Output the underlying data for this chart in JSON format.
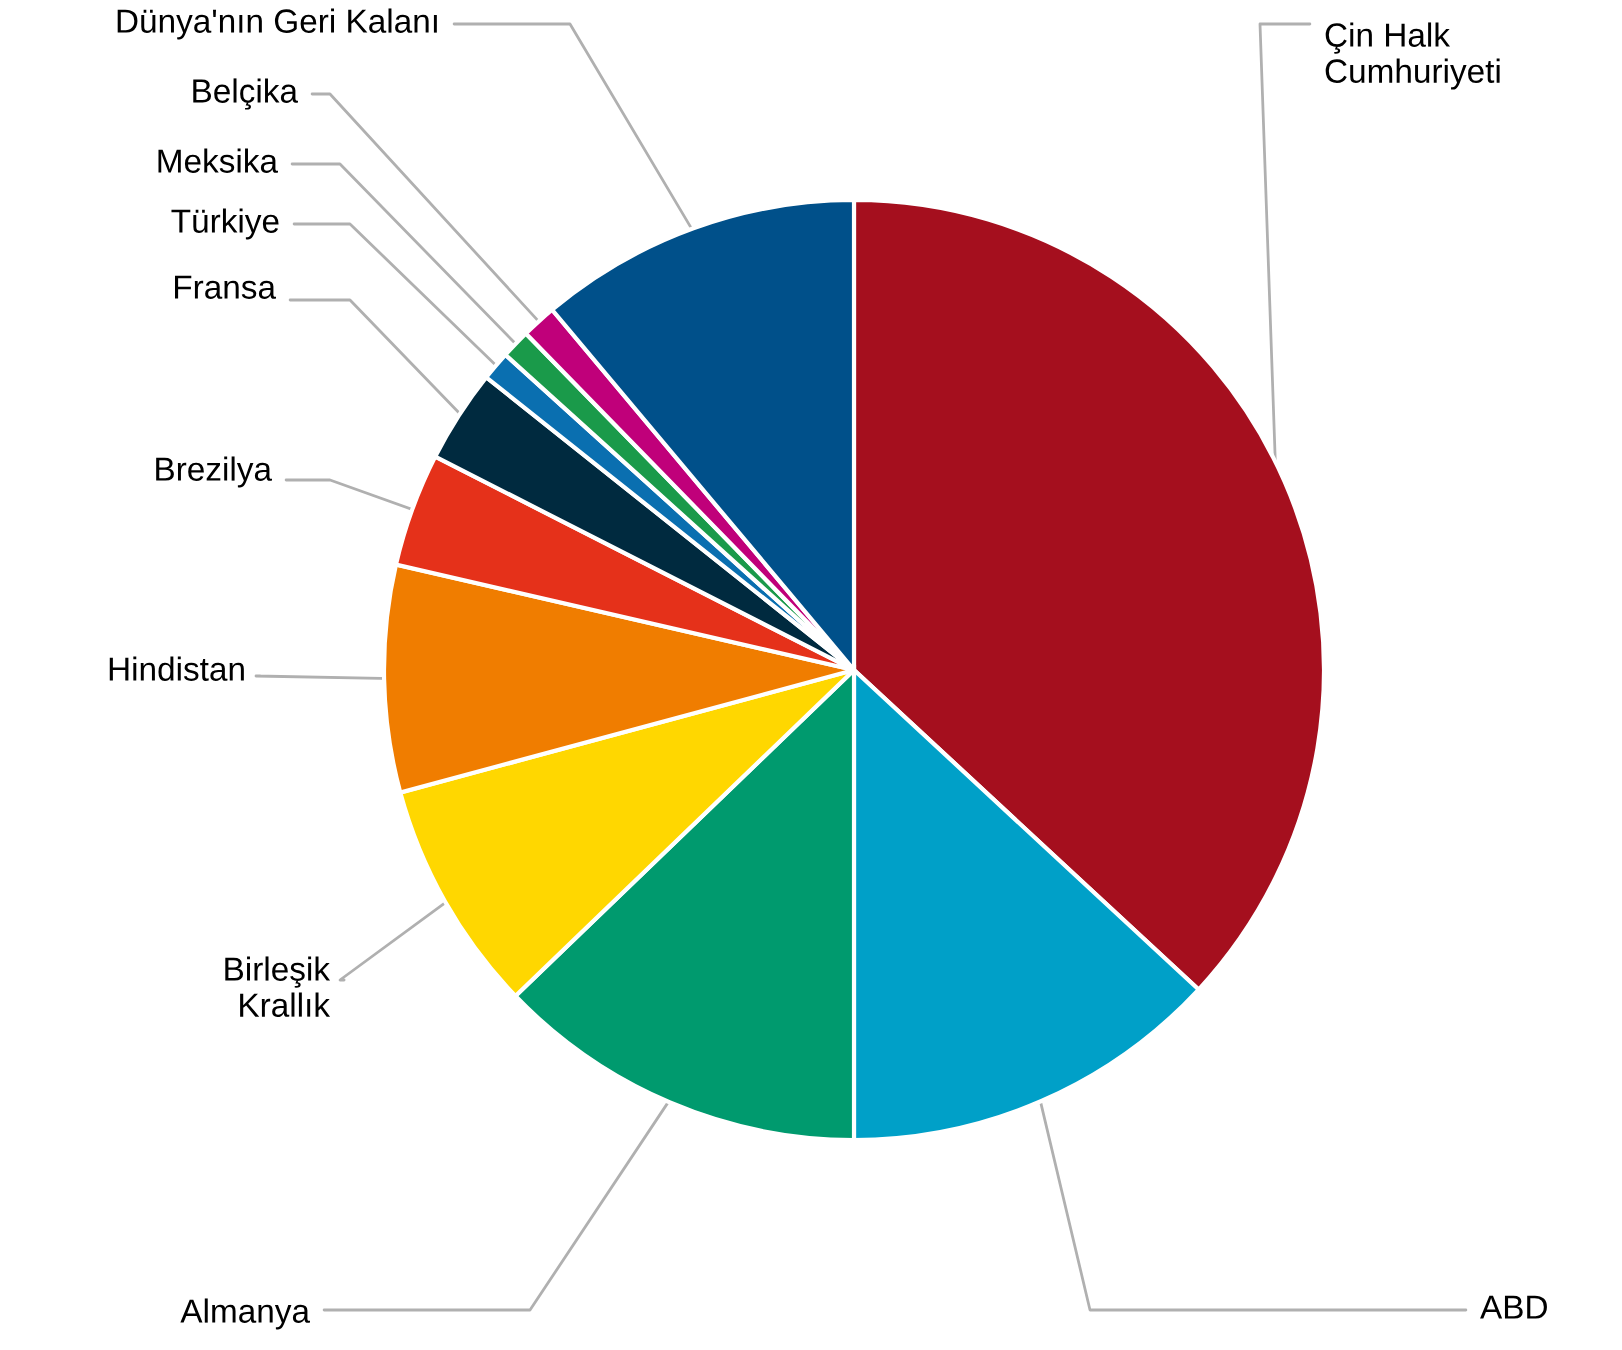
{
  "chart_data": {
    "type": "pie",
    "categories": [
      "Çin Halk\nCumhuriyeti",
      "ABD",
      "Almanya",
      "Birleşik\nKrallık",
      "Hindistan",
      "Brezilya",
      "Fransa",
      "Türkiye",
      "Meksika",
      "Belçika",
      "Dünya'nın Geri Kalanı"
    ],
    "values": [
      36.9,
      13.1,
      12.8,
      8.0,
      7.8,
      3.9,
      3.2,
      1.0,
      1.0,
      1.2,
      11.1
    ],
    "colors": [
      "#a50f1e",
      "#00a0c8",
      "#009a6e",
      "#ffd700",
      "#f07d00",
      "#e5311a",
      "#002a3f",
      "#0a6fb0",
      "#1a9a4a",
      "#c0007a",
      "#00508a"
    ],
    "legend": false
  }
}
